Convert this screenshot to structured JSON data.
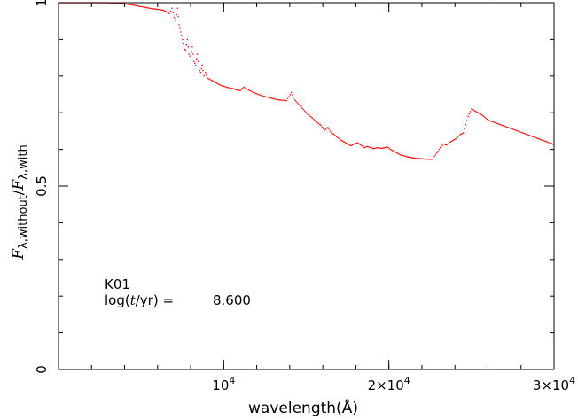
{
  "chart_data": {
    "type": "scatter",
    "title": "",
    "xlabel": "wavelength(Å)",
    "ylabel": "Fλ,without/Fλ,with",
    "ylabel_parts": {
      "main": "F",
      "sub1": "λ,without",
      "slash": "/",
      "main2": "F",
      "sub2": "λ,with"
    },
    "xlim": [
      0,
      30000
    ],
    "ylim": [
      0,
      1.0
    ],
    "x_ticks": [
      {
        "value": 10000,
        "label": "10",
        "exp": "4"
      },
      {
        "value": 20000,
        "label": "2×10",
        "exp": "4"
      },
      {
        "value": 30000,
        "label": "3×10",
        "exp": "4"
      }
    ],
    "y_ticks": [
      {
        "value": 0,
        "label": "0"
      },
      {
        "value": 0.5,
        "label": "0.5"
      },
      {
        "value": 1.0,
        "label": "1"
      }
    ],
    "x_minor_step": 2000,
    "y_minor_step": 0.1,
    "grid": false,
    "annotations": {
      "model": "K01",
      "age_prefix": "log(",
      "age_var": "t",
      "age_suffix": "/yr)  =",
      "age_value": "8.600"
    },
    "series": [
      {
        "color": "#ff0000",
        "points": [
          [
            0,
            1.0
          ],
          [
            500,
            1.0
          ],
          [
            1000,
            1.0
          ],
          [
            1500,
            1.0
          ],
          [
            2000,
            1.0
          ],
          [
            2500,
            1.0
          ],
          [
            3000,
            1.0
          ],
          [
            3500,
            0.999
          ],
          [
            4000,
            0.997
          ],
          [
            4300,
            0.995
          ],
          [
            4600,
            0.993
          ],
          [
            4900,
            0.99
          ],
          [
            5200,
            0.988
          ],
          [
            5500,
            0.985
          ],
          [
            5800,
            0.983
          ],
          [
            6000,
            0.982
          ],
          [
            6300,
            0.98
          ],
          [
            6500,
            0.976
          ],
          [
            6700,
            0.97
          ],
          [
            6850,
            0.985
          ],
          [
            7000,
            0.96
          ],
          [
            7100,
            0.95
          ],
          [
            7200,
            0.985
          ],
          [
            7300,
            0.94
          ],
          [
            7400,
            0.92
          ],
          [
            7500,
            0.9
          ],
          [
            7600,
            0.875
          ],
          [
            7700,
            0.87
          ],
          [
            7800,
            0.9
          ],
          [
            7900,
            0.86
          ],
          [
            8000,
            0.85
          ],
          [
            8100,
            0.88
          ],
          [
            8200,
            0.84
          ],
          [
            8300,
            0.83
          ],
          [
            8400,
            0.86
          ],
          [
            8500,
            0.82
          ],
          [
            8600,
            0.81
          ],
          [
            8700,
            0.83
          ],
          [
            8800,
            0.8
          ],
          [
            8900,
            0.81
          ],
          [
            9000,
            0.795
          ],
          [
            9200,
            0.79
          ],
          [
            9400,
            0.785
          ],
          [
            9600,
            0.78
          ],
          [
            9800,
            0.775
          ],
          [
            10000,
            0.772
          ],
          [
            10300,
            0.768
          ],
          [
            10600,
            0.765
          ],
          [
            10800,
            0.762
          ],
          [
            11000,
            0.76
          ],
          [
            11200,
            0.77
          ],
          [
            11500,
            0.762
          ],
          [
            11800,
            0.755
          ],
          [
            12100,
            0.75
          ],
          [
            12400,
            0.745
          ],
          [
            12700,
            0.742
          ],
          [
            13000,
            0.738
          ],
          [
            13300,
            0.735
          ],
          [
            13600,
            0.734
          ],
          [
            13800,
            0.733
          ],
          [
            14100,
            0.755
          ],
          [
            14300,
            0.735
          ],
          [
            14500,
            0.725
          ],
          [
            14700,
            0.715
          ],
          [
            14900,
            0.705
          ],
          [
            15100,
            0.695
          ],
          [
            15300,
            0.688
          ],
          [
            15500,
            0.68
          ],
          [
            15700,
            0.672
          ],
          [
            15900,
            0.665
          ],
          [
            16100,
            0.652
          ],
          [
            16300,
            0.66
          ],
          [
            16500,
            0.645
          ],
          [
            16700,
            0.64
          ],
          [
            16900,
            0.632
          ],
          [
            17100,
            0.625
          ],
          [
            17300,
            0.62
          ],
          [
            17500,
            0.615
          ],
          [
            17700,
            0.61
          ],
          [
            17900,
            0.615
          ],
          [
            18100,
            0.618
          ],
          [
            18300,
            0.612
          ],
          [
            18500,
            0.605
          ],
          [
            18700,
            0.608
          ],
          [
            18900,
            0.605
          ],
          [
            19100,
            0.602
          ],
          [
            19300,
            0.605
          ],
          [
            19500,
            0.603
          ],
          [
            19700,
            0.604
          ],
          [
            19900,
            0.607
          ],
          [
            20100,
            0.6
          ],
          [
            20300,
            0.595
          ],
          [
            20500,
            0.59
          ],
          [
            20700,
            0.585
          ],
          [
            20900,
            0.583
          ],
          [
            21100,
            0.58
          ],
          [
            21300,
            0.578
          ],
          [
            21500,
            0.577
          ],
          [
            21700,
            0.575
          ],
          [
            21900,
            0.575
          ],
          [
            22100,
            0.574
          ],
          [
            22300,
            0.573
          ],
          [
            22600,
            0.573
          ],
          [
            22900,
            0.59
          ],
          [
            23100,
            0.605
          ],
          [
            23300,
            0.615
          ],
          [
            23500,
            0.612
          ],
          [
            23700,
            0.62
          ],
          [
            23900,
            0.625
          ],
          [
            24100,
            0.63
          ],
          [
            24300,
            0.64
          ],
          [
            24500,
            0.645
          ],
          [
            24800,
            0.69
          ],
          [
            25000,
            0.71
          ],
          [
            25200,
            0.705
          ],
          [
            25400,
            0.7
          ],
          [
            25600,
            0.695
          ],
          [
            25800,
            0.688
          ],
          [
            26000,
            0.68
          ],
          [
            26300,
            0.675
          ],
          [
            26600,
            0.67
          ],
          [
            26900,
            0.665
          ],
          [
            27200,
            0.66
          ],
          [
            27500,
            0.655
          ],
          [
            27800,
            0.65
          ],
          [
            28100,
            0.645
          ],
          [
            28400,
            0.64
          ],
          [
            28700,
            0.635
          ],
          [
            29000,
            0.63
          ],
          [
            29300,
            0.625
          ],
          [
            29600,
            0.62
          ],
          [
            30000,
            0.613
          ]
        ]
      }
    ]
  }
}
